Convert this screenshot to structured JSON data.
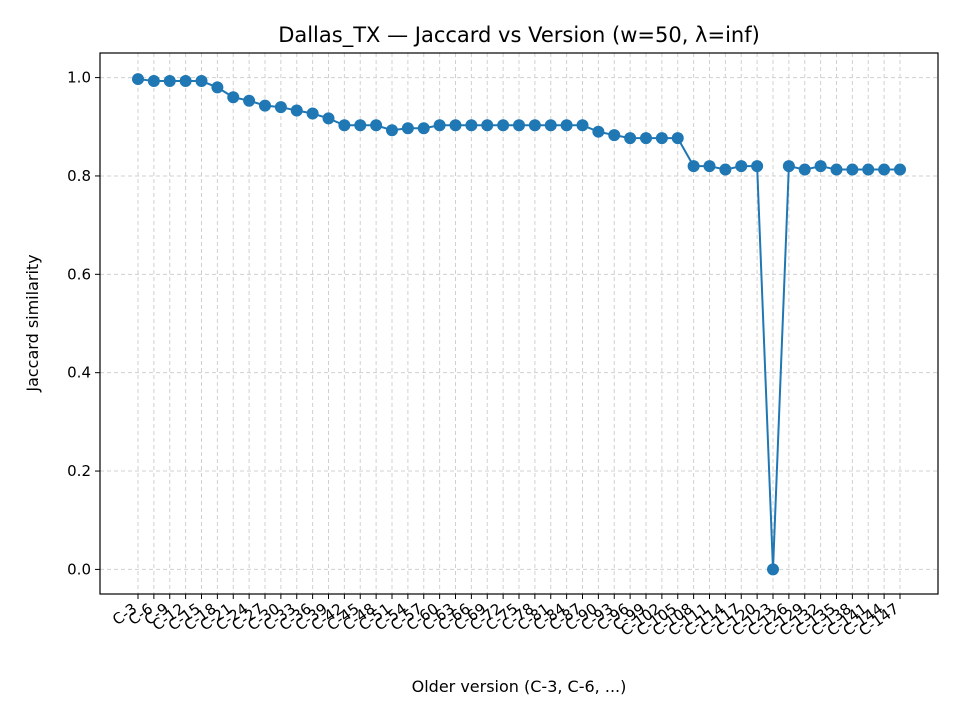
{
  "chart_data": {
    "type": "line",
    "title": "Dallas_TX — Jaccard vs Version (w=50, λ=inf)",
    "xlabel": "Older version (C-3, C-6, ...)",
    "ylabel": "Jaccard similarity",
    "ylim": [
      -0.05,
      1.05
    ],
    "yticks": [
      0.0,
      0.2,
      0.4,
      0.6,
      0.8,
      1.0
    ],
    "grid": true,
    "legend": "none",
    "colors": {
      "series": "#1f77b4",
      "grid": "#d0d0d0",
      "axis": "#000000"
    },
    "categories": [
      "C-3",
      "C-6",
      "C-9",
      "C-12",
      "C-15",
      "C-18",
      "C-21",
      "C-24",
      "C-27",
      "C-30",
      "C-33",
      "C-36",
      "C-39",
      "C-42",
      "C-45",
      "C-48",
      "C-51",
      "C-54",
      "C-57",
      "C-60",
      "C-63",
      "C-66",
      "C-69",
      "C-72",
      "C-75",
      "C-78",
      "C-81",
      "C-84",
      "C-87",
      "C-90",
      "C-93",
      "C-96",
      "C-99",
      "C-102",
      "C-105",
      "C-108",
      "C-111",
      "C-114",
      "C-117",
      "C-120",
      "C-123",
      "C-126",
      "C-129",
      "C-132",
      "C-135",
      "C-138",
      "C-141",
      "C-144",
      "C-147"
    ],
    "series": [
      {
        "values": [
          0.997,
          0.993,
          0.993,
          0.993,
          0.993,
          0.98,
          0.96,
          0.953,
          0.943,
          0.94,
          0.933,
          0.927,
          0.917,
          0.903,
          0.903,
          0.903,
          0.893,
          0.897,
          0.897,
          0.903,
          0.903,
          0.903,
          0.903,
          0.903,
          0.903,
          0.903,
          0.903,
          0.903,
          0.903,
          0.89,
          0.883,
          0.877,
          0.877,
          0.877,
          0.877,
          0.82,
          0.82,
          0.813,
          0.82,
          0.82,
          0.0,
          0.82,
          0.813,
          0.82,
          0.813,
          0.813,
          0.813,
          0.813,
          0.813
        ]
      }
    ]
  }
}
